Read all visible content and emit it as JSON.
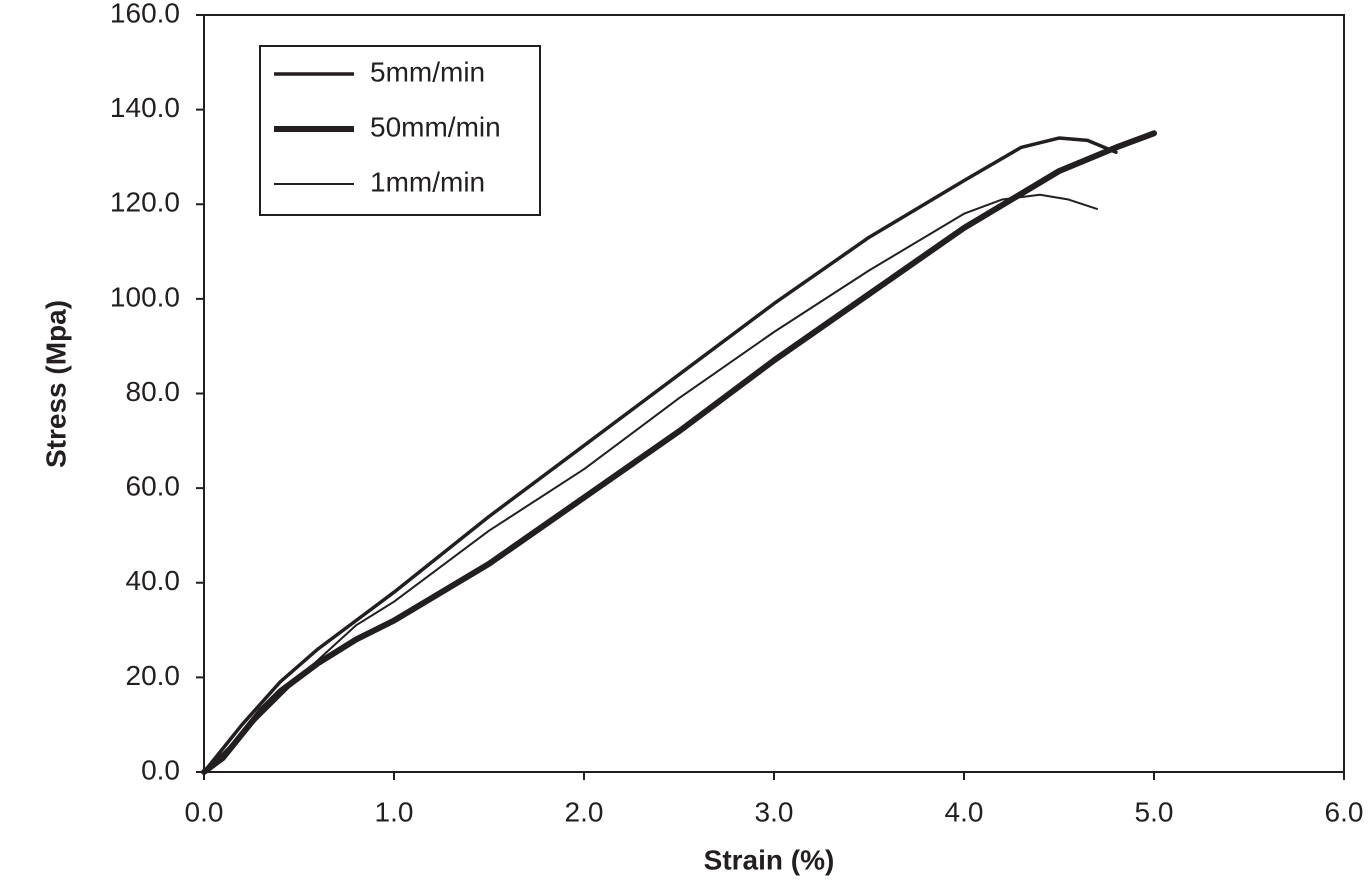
{
  "chart_data": {
    "type": "line",
    "x_label": "Strain (%)",
    "y_label": "Stress (Mpa)",
    "xlim": [
      0,
      6
    ],
    "ylim": [
      0,
      160
    ],
    "xticks": [
      {
        "value": 0,
        "label": "0.0"
      },
      {
        "value": 1,
        "label": "1.0"
      },
      {
        "value": 2,
        "label": "2.0"
      },
      {
        "value": 3,
        "label": "3.0"
      },
      {
        "value": 4,
        "label": "4.0"
      },
      {
        "value": 5,
        "label": "5.0"
      },
      {
        "value": 6,
        "label": "6.0"
      }
    ],
    "yticks": [
      {
        "value": 0,
        "label": "0.0"
      },
      {
        "value": 20,
        "label": "20.0"
      },
      {
        "value": 40,
        "label": "40.0"
      },
      {
        "value": 60,
        "label": "60.0"
      },
      {
        "value": 80,
        "label": "80.0"
      },
      {
        "value": 100,
        "label": "100.0"
      },
      {
        "value": 120,
        "label": "120.0"
      },
      {
        "value": 140,
        "label": "140.0"
      },
      {
        "value": 160,
        "label": "160.0"
      }
    ],
    "legend": "upper-left",
    "series": [
      {
        "name": "5mm/min",
        "color": "#231f20",
        "line_width": 3.5,
        "x": [
          0,
          0.1,
          0.2,
          0.4,
          0.6,
          0.8,
          1.0,
          1.5,
          2.0,
          2.5,
          3.0,
          3.5,
          4.0,
          4.3,
          4.5,
          4.65,
          4.8
        ],
        "values": [
          0,
          5,
          10,
          19,
          26,
          32,
          38,
          54,
          69,
          84,
          99,
          113,
          125,
          132,
          134,
          133.5,
          131
        ]
      },
      {
        "name": "50mm/min",
        "color": "#231f20",
        "line_width": 6,
        "x": [
          0,
          0.1,
          0.2,
          0.3,
          0.4,
          0.6,
          0.8,
          1.0,
          1.5,
          2.0,
          2.5,
          3.0,
          3.5,
          4.0,
          4.5,
          4.8,
          5.0
        ],
        "values": [
          0,
          3,
          8,
          13,
          17,
          23,
          28,
          32,
          44,
          58,
          72,
          87,
          101,
          115,
          127,
          132,
          135
        ]
      },
      {
        "name": "1mm/min",
        "color": "#231f20",
        "line_width": 2,
        "x": [
          0,
          0.1,
          0.3,
          0.5,
          0.8,
          1.0,
          1.5,
          2.0,
          2.5,
          3.0,
          3.5,
          4.0,
          4.2,
          4.4,
          4.55,
          4.7
        ],
        "values": [
          0,
          4,
          12,
          20,
          31,
          36,
          51,
          64,
          79,
          93,
          106,
          118,
          121,
          122,
          121,
          119
        ]
      }
    ]
  }
}
